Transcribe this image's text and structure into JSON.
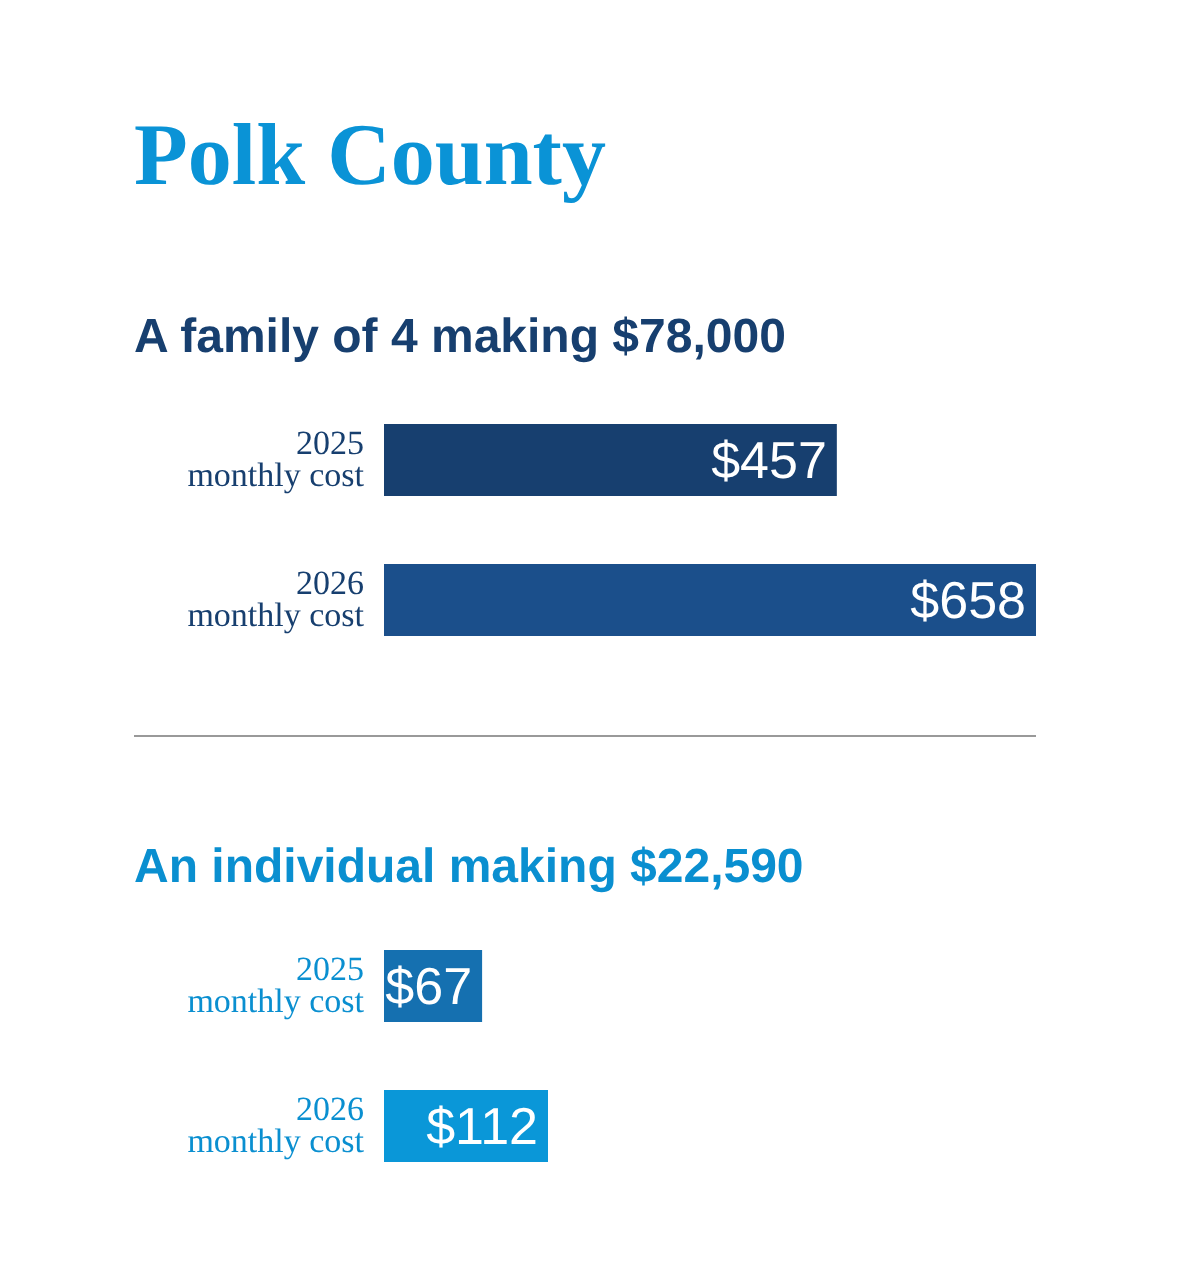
{
  "chart_data": [
    {
      "type": "bar",
      "orientation": "horizontal",
      "title": "Polk County",
      "subtitle": "A family of 4 making $78,000",
      "categories": [
        "2025\nmonthly cost",
        "2026\nmonthly cost"
      ],
      "values": [
        457,
        658
      ],
      "colors": [
        "#173f6f",
        "#1b4f8b"
      ],
      "value_labels": [
        "$457",
        "$658"
      ]
    },
    {
      "type": "bar",
      "orientation": "horizontal",
      "title": "An individual making $22,590",
      "categories": [
        "2025\nmonthly cost",
        "2026\nmonthly cost"
      ],
      "values": [
        67,
        112
      ],
      "colors": [
        "#1570b0",
        "#0a97d8"
      ],
      "value_labels": [
        "$67",
        "$112"
      ]
    }
  ]
}
